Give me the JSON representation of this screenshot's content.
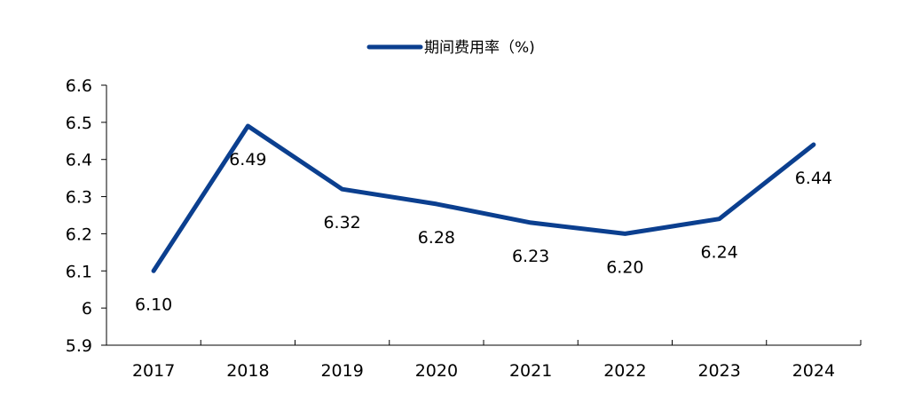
{
  "chart_data": {
    "type": "line",
    "categories": [
      "2017",
      "2018",
      "2019",
      "2020",
      "2021",
      "2022",
      "2023",
      "2024"
    ],
    "series": [
      {
        "name": "期间费用率（%)",
        "values": [
          6.1,
          6.49,
          6.32,
          6.28,
          6.23,
          6.2,
          6.24,
          6.44
        ]
      }
    ],
    "data_labels": [
      "6.10",
      "6.49",
      "6.32",
      "6.28",
      "6.23",
      "6.20",
      "6.24",
      "6.44"
    ],
    "y_ticks": [
      "5.9",
      "6",
      "6.1",
      "6.2",
      "6.3",
      "6.4",
      "6.5",
      "6.6"
    ],
    "ylim": [
      5.9,
      6.6
    ],
    "legend_position": "top-center",
    "grid": false,
    "colors": {
      "line": "#0B3F8F",
      "axis": "#000000"
    }
  }
}
